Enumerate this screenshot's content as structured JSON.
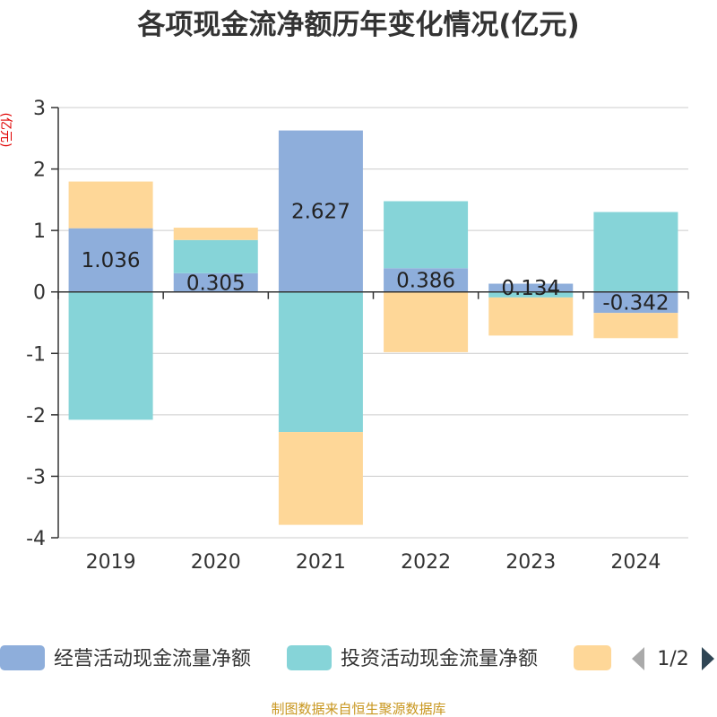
{
  "chart_data": {
    "type": "bar",
    "stacked": true,
    "title": "各项现金流净额历年变化情况(亿元)",
    "ylabel": "(亿元)",
    "xlabel": "",
    "ylim": [
      -4,
      3
    ],
    "yticks": [
      3,
      2,
      1,
      0,
      -1,
      -2,
      -3,
      -4
    ],
    "grid": true,
    "categories": [
      "2019",
      "2020",
      "2021",
      "2022",
      "2023",
      "2024"
    ],
    "series": [
      {
        "name": "经营活动现金流量净额",
        "color": "#8eaedb",
        "values": [
          1.036,
          0.305,
          2.627,
          0.386,
          0.134,
          -0.342
        ],
        "labels": [
          "1.036",
          "0.305",
          "2.627",
          "0.386",
          "0.134",
          "-0.342"
        ]
      },
      {
        "name": "投资活动现金流量净额",
        "color": "#86d4d8",
        "values": [
          -2.08,
          0.54,
          -2.28,
          1.09,
          -0.09,
          1.3
        ]
      },
      {
        "name": "",
        "color": "#fed798",
        "values": [
          0.76,
          0.2,
          -1.51,
          -0.98,
          -0.62,
          -0.41
        ]
      }
    ],
    "legend_position": "bottom",
    "legend_page": "1/2",
    "source": "制图数据来自恒生聚源数据库"
  }
}
